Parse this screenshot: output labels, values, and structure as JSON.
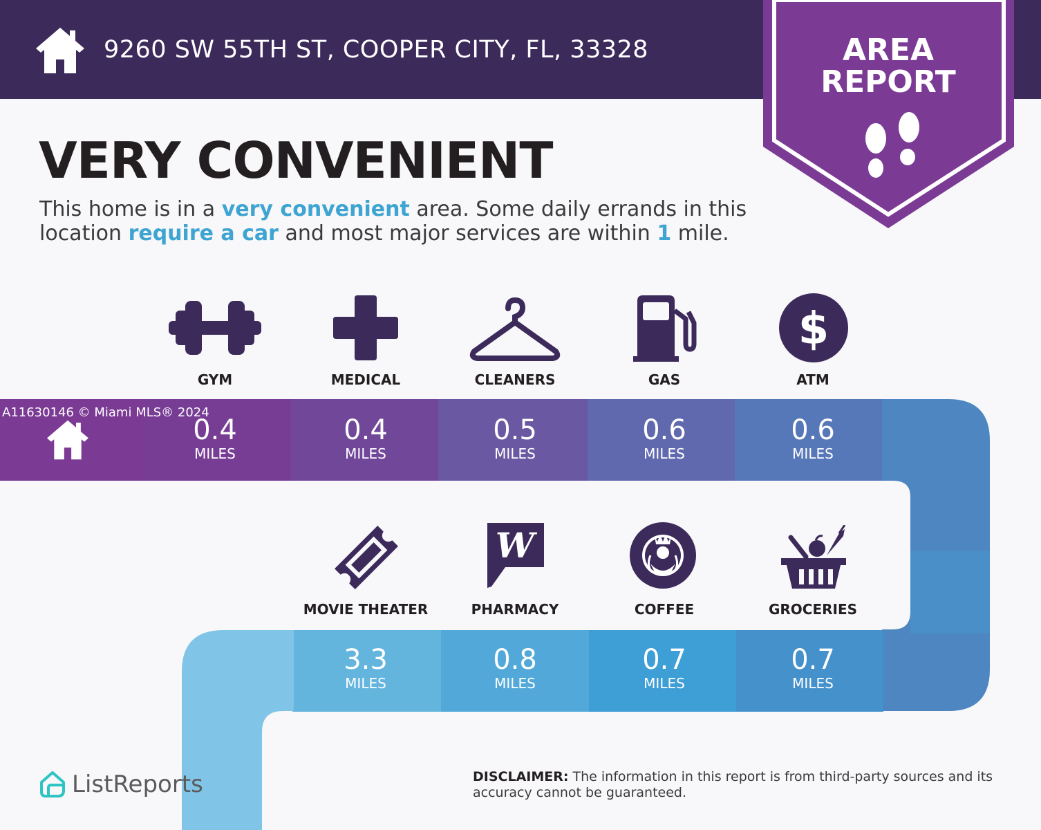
{
  "header": {
    "address": "9260 SW 55TH ST, COOPER CITY, FL, 33328",
    "badge_line1": "AREA",
    "badge_line2": "REPORT"
  },
  "headline": "VERY CONVENIENT",
  "description": {
    "part1": "This home is in a ",
    "highlight1": "very convenient",
    "part2": " area. Some daily errands in this location ",
    "highlight2": "require a car",
    "part3": " and most major services are within ",
    "highlight3": "1",
    "part4": " mile."
  },
  "unit": "MILES",
  "row1": [
    {
      "label": "GYM",
      "distance": "0.4",
      "icon": "dumbbell-icon"
    },
    {
      "label": "MEDICAL",
      "distance": "0.4",
      "icon": "medical-cross-icon"
    },
    {
      "label": "CLEANERS",
      "distance": "0.5",
      "icon": "hanger-icon"
    },
    {
      "label": "GAS",
      "distance": "0.6",
      "icon": "gas-pump-icon"
    },
    {
      "label": "ATM",
      "distance": "0.6",
      "icon": "dollar-icon"
    }
  ],
  "row2": [
    {
      "label": "MOVIE THEATER",
      "distance": "3.3",
      "icon": "ticket-icon"
    },
    {
      "label": "PHARMACY",
      "distance": "0.8",
      "icon": "pharmacy-logo-icon"
    },
    {
      "label": "COFFEE",
      "distance": "0.7",
      "icon": "coffee-logo-icon"
    },
    {
      "label": "GROCERIES",
      "distance": "0.7",
      "icon": "grocery-basket-icon"
    }
  ],
  "watermark": "A11630146 © Miami MLS® 2024",
  "brand": "ListReports",
  "disclaimer": {
    "label": "DISCLAIMER:",
    "text": " The information in this report is from third-party sources and its accuracy cannot be guaranteed."
  },
  "colors": {
    "header_bg": "#3b2a5a",
    "badge": "#7b3a94",
    "text_highlight": "#3ea4d2",
    "dark_text": "#231f20",
    "icon_purple": "#3b2a5a"
  }
}
